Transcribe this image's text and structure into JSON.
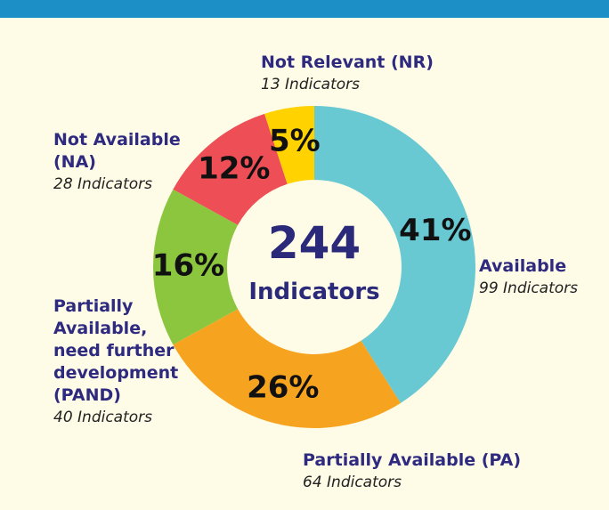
{
  "chart_data": {
    "type": "donut",
    "categories": [
      "Available",
      "Partially Available (PA)",
      "Partially Available, need further development (PAND)",
      "Not Available (NA)",
      "Not Relevant (NR)"
    ],
    "values": [
      41,
      26,
      16,
      12,
      5
    ],
    "value_labels": [
      "41%",
      "26%",
      "16%",
      "12%",
      "5%"
    ],
    "sublabels": [
      "99 Indicators",
      "64 Indicators",
      "40 Indicators",
      "28 Indicators",
      "13 Indicators"
    ],
    "colors": [
      "#68c9d3",
      "#f6a41f",
      "#8cc63f",
      "#ee4e55",
      "#ffd200"
    ],
    "center_label": "244",
    "center_sublabel": "Indicators"
  }
}
